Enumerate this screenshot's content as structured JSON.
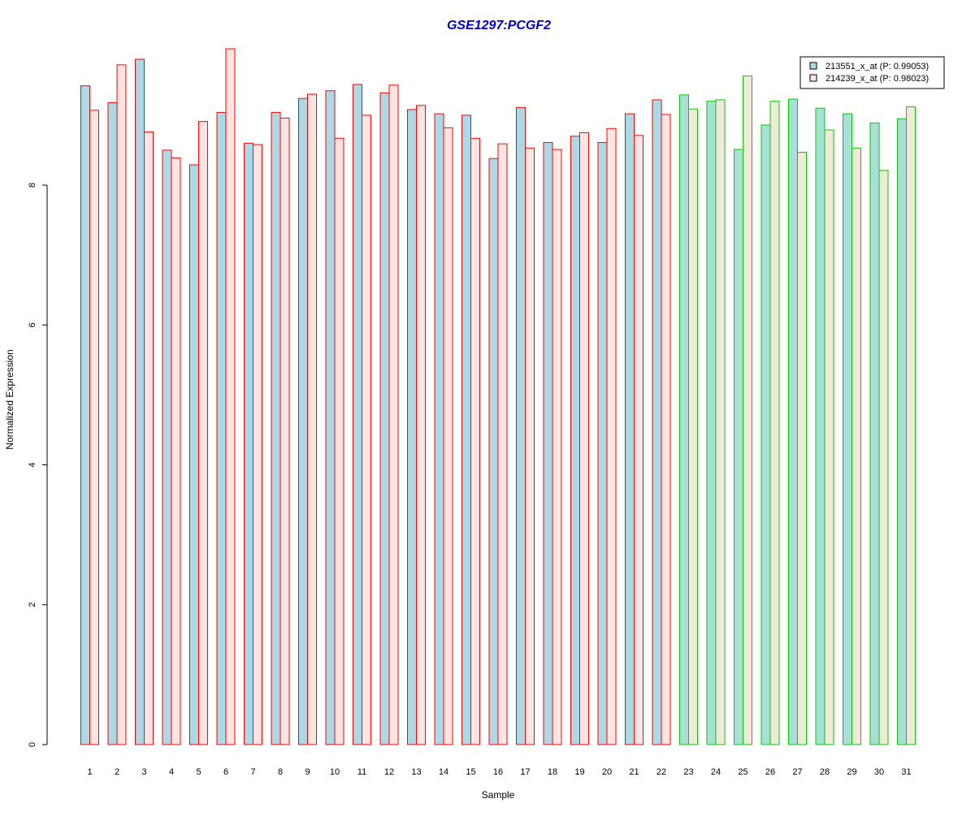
{
  "chart_data": {
    "type": "bar",
    "title": "GSE1297:PCGF2",
    "xlabel": "Sample",
    "ylabel": "Normalized Expression",
    "ylim": [
      0,
      10
    ],
    "yticks": [
      0,
      2,
      4,
      6,
      8
    ],
    "grid": false,
    "legend_position": "top-right",
    "categories": [
      "1",
      "2",
      "3",
      "4",
      "5",
      "6",
      "7",
      "8",
      "9",
      "10",
      "11",
      "12",
      "13",
      "14",
      "15",
      "16",
      "17",
      "18",
      "19",
      "20",
      "21",
      "22",
      "23",
      "24",
      "25",
      "26",
      "27",
      "28",
      "29",
      "30",
      "31"
    ],
    "series": [
      {
        "name": "213551_x_at (P: 0.99053)",
        "values": [
          9.42,
          9.18,
          9.8,
          8.5,
          8.29,
          9.04,
          8.6,
          9.04,
          9.24,
          9.35,
          9.44,
          9.32,
          9.08,
          9.02,
          9.0,
          8.38,
          9.11,
          8.61,
          8.7,
          8.61,
          9.02,
          9.22,
          9.29,
          9.2,
          8.51,
          8.86,
          9.23,
          9.1,
          9.02,
          8.89,
          8.95
        ]
      },
      {
        "name": "214239_x_at (P: 0.98023)",
        "values": [
          9.07,
          9.72,
          8.76,
          8.39,
          8.91,
          9.95,
          8.58,
          8.96,
          9.3,
          8.67,
          9.0,
          9.43,
          9.14,
          8.82,
          8.67,
          8.59,
          8.53,
          8.51,
          8.75,
          8.81,
          8.71,
          9.01,
          9.09,
          9.22,
          9.56,
          9.2,
          8.47,
          8.79,
          8.53,
          8.21,
          9.12
        ]
      }
    ],
    "group_boundary_after_index": 21,
    "colors": {
      "fill_series1": "#add8e6",
      "fill_series1_group2": "#a8e0d8",
      "fill_series2": "#ffe4e1",
      "fill_series2_group2": "#f2ead8",
      "border_group1": "#ff0000",
      "border_group2": "#00cc00",
      "title": "#0000cc",
      "axis": "#000000"
    }
  }
}
